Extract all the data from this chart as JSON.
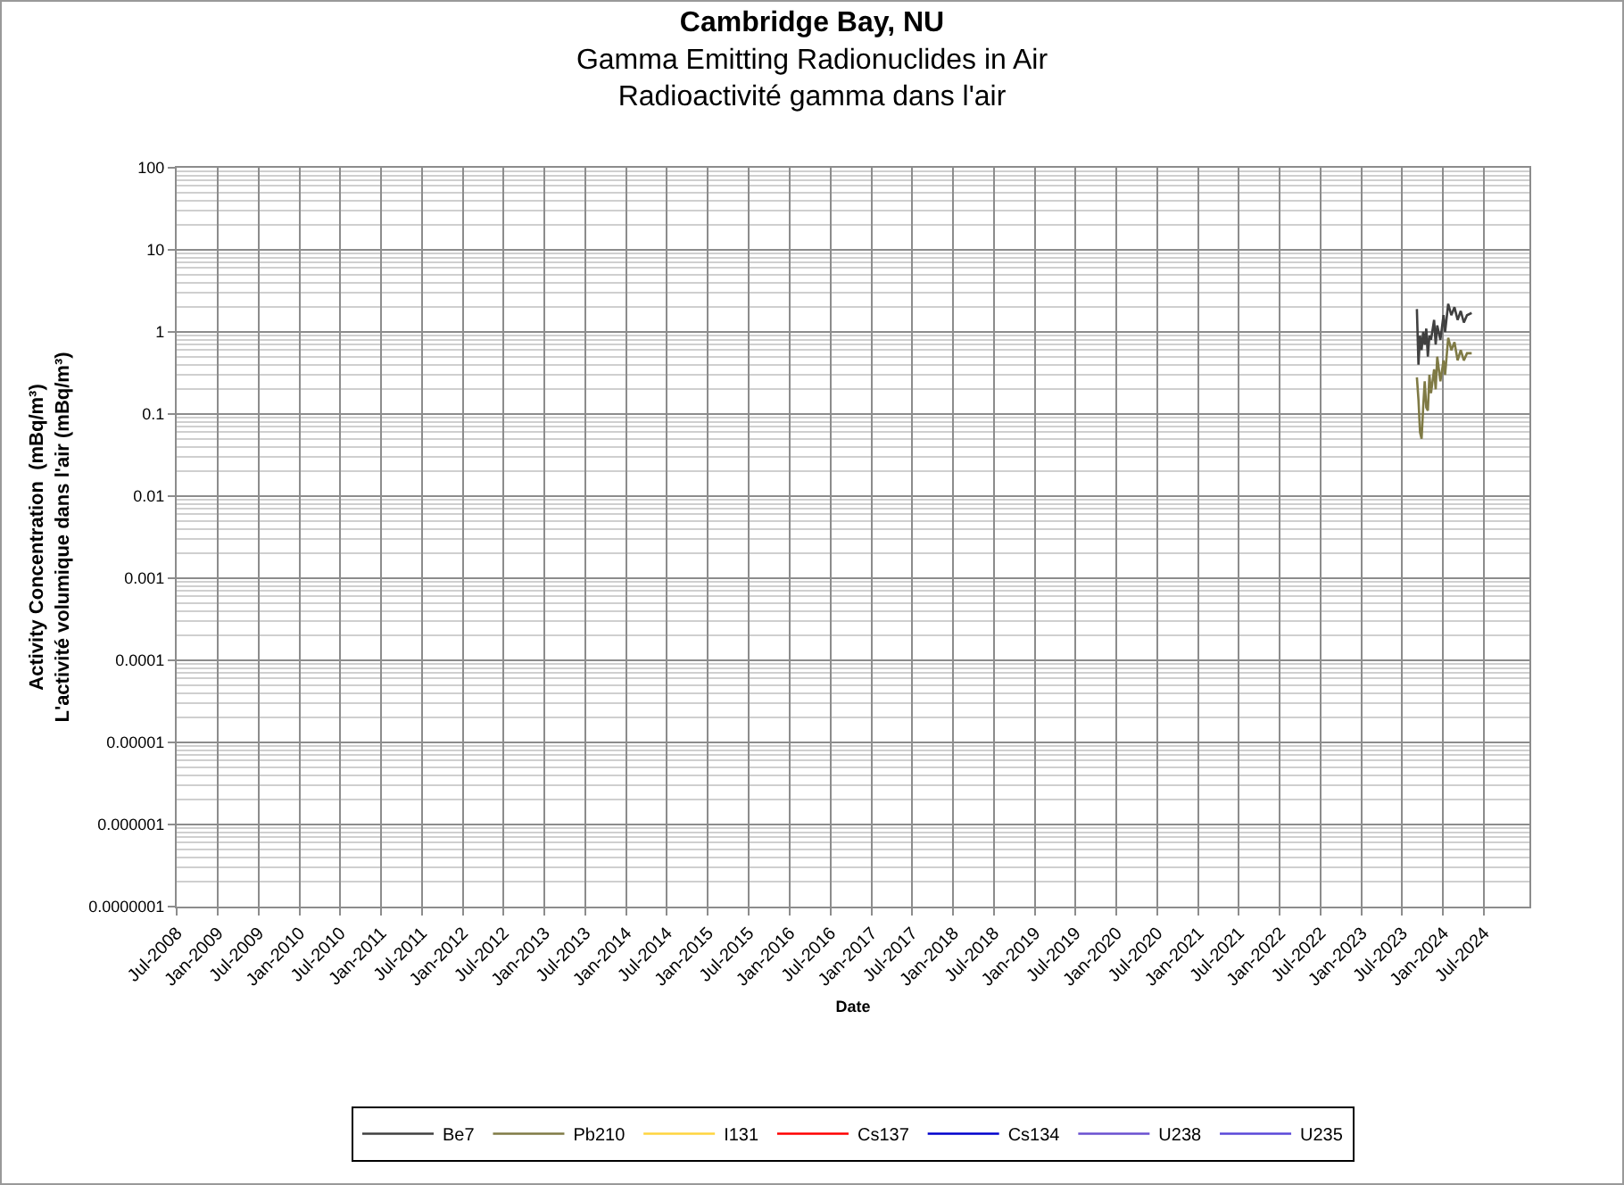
{
  "chart_data": {
    "type": "line",
    "title": "Cambridge Bay, NU",
    "subtitle": "Gamma Emitting Radionuclides in Air\nRadioactivité gamma dans l'air",
    "xlabel": "Date",
    "ylabel": "Activity Concentration  (mBq/m³)\nL'activité volumique dans l'air (mBq/m³)",
    "x": [
      "2023-09-05",
      "2023-09-12",
      "2023-09-19",
      "2023-09-26",
      "2023-10-03",
      "2023-10-10",
      "2023-10-17",
      "2023-10-24",
      "2023-10-31",
      "2023-11-07",
      "2023-11-21",
      "2023-11-28",
      "2023-12-05",
      "2023-12-19",
      "2024-01-02",
      "2024-01-09",
      "2024-01-23",
      "2024-02-06",
      "2024-02-20",
      "2024-03-05",
      "2024-03-19",
      "2024-04-02",
      "2024-04-16",
      "2024-05-07"
    ],
    "series": [
      {
        "name": "Be7",
        "color": "#404040",
        "values": [
          1.9,
          0.4,
          0.9,
          0.6,
          1.0,
          0.7,
          1.1,
          0.5,
          0.9,
          0.8,
          1.4,
          0.7,
          1.2,
          0.8,
          1.6,
          1.0,
          2.2,
          1.6,
          2.0,
          1.4,
          1.8,
          1.3,
          1.6,
          1.7
        ]
      },
      {
        "name": "Pb210",
        "color": "#7f7a45",
        "values": [
          0.28,
          0.15,
          0.06,
          0.05,
          0.12,
          0.25,
          0.12,
          0.11,
          0.3,
          0.18,
          0.35,
          0.2,
          0.5,
          0.25,
          0.45,
          0.3,
          0.85,
          0.6,
          0.75,
          0.45,
          0.6,
          0.45,
          0.55,
          0.55
        ]
      },
      {
        "name": "I131",
        "color": "#ffd43f",
        "values": [
          null,
          null,
          null,
          null,
          null,
          null,
          null,
          null,
          null,
          null,
          null,
          null,
          null,
          null,
          null,
          null,
          null,
          null,
          null,
          null,
          null,
          null,
          null,
          null
        ]
      },
      {
        "name": "Cs137",
        "color": "#ff0000",
        "values": [
          null,
          null,
          null,
          null,
          null,
          null,
          null,
          null,
          null,
          null,
          null,
          null,
          null,
          null,
          null,
          null,
          null,
          null,
          null,
          null,
          null,
          null,
          null,
          null
        ]
      },
      {
        "name": "Cs134",
        "color": "#0000cc",
        "values": [
          null,
          null,
          null,
          null,
          null,
          null,
          null,
          null,
          null,
          null,
          null,
          null,
          null,
          null,
          null,
          null,
          null,
          null,
          null,
          null,
          null,
          null,
          null,
          null
        ]
      },
      {
        "name": "U238",
        "color": "#6a50d0",
        "values": [
          null,
          null,
          null,
          null,
          null,
          null,
          null,
          null,
          null,
          null,
          null,
          null,
          null,
          null,
          null,
          null,
          null,
          null,
          null,
          null,
          null,
          null,
          null,
          null
        ]
      },
      {
        "name": "U235",
        "color": "#5a48d8",
        "values": [
          null,
          null,
          null,
          null,
          null,
          null,
          null,
          null,
          null,
          null,
          null,
          null,
          null,
          null,
          null,
          null,
          null,
          null,
          null,
          null,
          null,
          null,
          null,
          null
        ]
      }
    ],
    "log": "y",
    "ylim": [
      1e-07,
      100
    ],
    "yticks": [
      {
        "value": 1e-07,
        "label": "0.0000001"
      },
      {
        "value": 1e-06,
        "label": "0.000001"
      },
      {
        "value": 1e-05,
        "label": "0.00001"
      },
      0.0001,
      0.001,
      0.01,
      0.1,
      1,
      10,
      100
    ],
    "xlim": [
      "2008-07-01",
      "2025-01-20"
    ],
    "xticks": [
      {
        "value": "2008-07-01",
        "label": "Jul-2008"
      },
      {
        "value": "2009-01-01",
        "label": "Jan-2009"
      },
      {
        "value": "2009-07-01",
        "label": "Jul-2009"
      },
      {
        "value": "2010-01-01",
        "label": "Jan-2010"
      },
      {
        "value": "2010-07-01",
        "label": "Jul-2010"
      },
      {
        "value": "2011-01-01",
        "label": "Jan-2011"
      },
      {
        "value": "2011-07-01",
        "label": "Jul-2011"
      },
      {
        "value": "2012-01-01",
        "label": "Jan-2012"
      },
      {
        "value": "2012-07-01",
        "label": "Jul-2012"
      },
      {
        "value": "2013-01-01",
        "label": "Jan-2013"
      },
      {
        "value": "2013-07-01",
        "label": "Jul-2013"
      },
      {
        "value": "2014-01-01",
        "label": "Jan-2014"
      },
      {
        "value": "2014-07-01",
        "label": "Jul-2014"
      },
      {
        "value": "2015-01-01",
        "label": "Jan-2015"
      },
      {
        "value": "2015-07-01",
        "label": "Jul-2015"
      },
      {
        "value": "2016-01-01",
        "label": "Jan-2016"
      },
      {
        "value": "2016-07-01",
        "label": "Jul-2016"
      },
      {
        "value": "2017-01-01",
        "label": "Jan-2017"
      },
      {
        "value": "2017-07-01",
        "label": "Jul-2017"
      },
      {
        "value": "2018-01-01",
        "label": "Jan-2018"
      },
      {
        "value": "2018-07-01",
        "label": "Jul-2018"
      },
      {
        "value": "2019-01-01",
        "label": "Jan-2019"
      },
      {
        "value": "2019-07-01",
        "label": "Jul-2019"
      },
      {
        "value": "2020-01-01",
        "label": "Jan-2020"
      },
      {
        "value": "2020-07-01",
        "label": "Jul-2020"
      },
      {
        "value": "2021-01-01",
        "label": "Jan-2021"
      },
      {
        "value": "2021-07-01",
        "label": "Jul-2021"
      },
      {
        "value": "2022-01-01",
        "label": "Jan-2022"
      },
      {
        "value": "2022-07-01",
        "label": "Jul-2022"
      },
      {
        "value": "2023-01-01",
        "label": "Jan-2023"
      },
      {
        "value": "2023-07-01",
        "label": "Jul-2023"
      },
      {
        "value": "2024-01-01",
        "label": "Jan-2024"
      },
      {
        "value": "2024-07-01",
        "label": "Jul-2024"
      }
    ],
    "grid": true,
    "legend": "bottom",
    "marker": "none",
    "line_style": "solid"
  }
}
